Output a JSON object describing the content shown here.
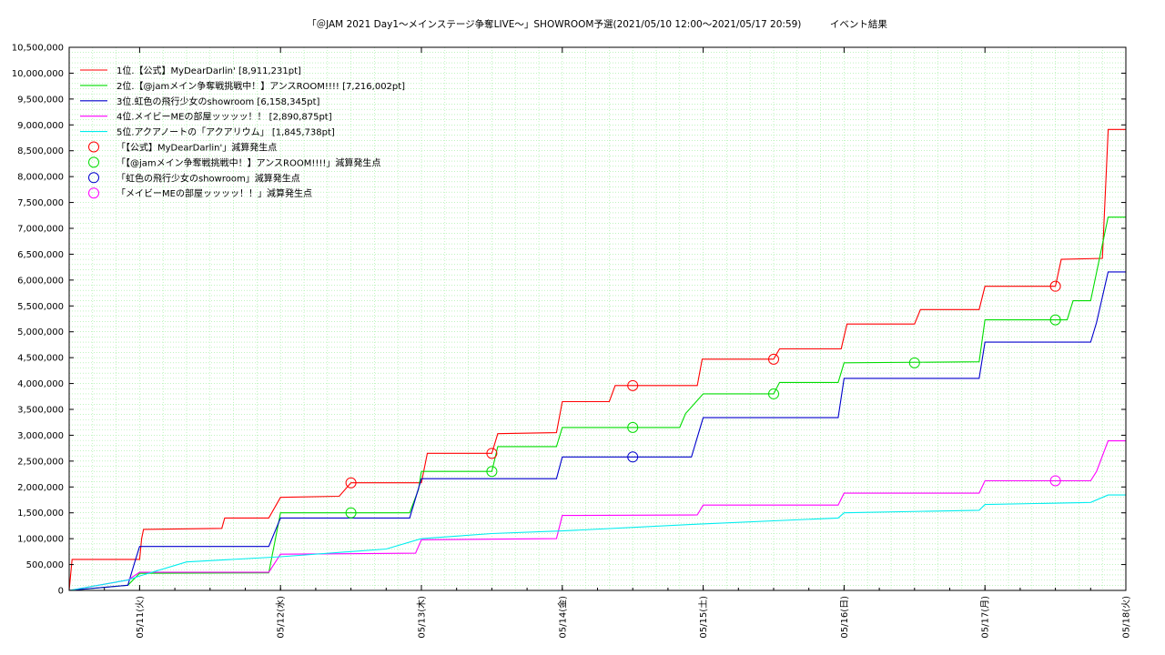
{
  "chart_data": {
    "type": "line",
    "title": "「＠JAM 2021 Day1～メインステージ争奪LIVE～」SHOWROOM予選(2021/05/10 12:00～2021/05/17 20:59)　　　イベント結果",
    "x_ticks": [
      "05/11(火)",
      "05/12(水)",
      "05/13(木)",
      "05/14(金)",
      "05/15(土)",
      "05/16(日)",
      "05/17(月)",
      "05/18(火)"
    ],
    "y_ticks": [
      "0",
      "500,000",
      "1,000,000",
      "1,500,000",
      "2,000,000",
      "2,500,000",
      "3,000,000",
      "3,500,000",
      "4,000,000",
      "4,500,000",
      "5,000,000",
      "5,500,000",
      "6,000,000",
      "6,500,000",
      "7,000,000",
      "7,500,000",
      "8,000,000",
      "8,500,000",
      "9,000,000",
      "9,500,000",
      "10,000,000",
      "10,500,000"
    ],
    "xlim": [
      "2021-05-10 12:00",
      "2021-05-18 00:00"
    ],
    "ylim": [
      0,
      10500000
    ],
    "grid": true,
    "legend_position": "top-left",
    "series": [
      {
        "name": "1位.【公式】MyDearDarlin' [8,911,231pt]",
        "color": "#ff0000",
        "points": [
          [
            "2021-05-10 12:00",
            0
          ],
          [
            "2021-05-10 12:30",
            600000
          ],
          [
            "2021-05-11 00:00",
            600000
          ],
          [
            "2021-05-11 00:20",
            1000000
          ],
          [
            "2021-05-11 00:40",
            1180000
          ],
          [
            "2021-05-11 14:00",
            1200000
          ],
          [
            "2021-05-11 14:30",
            1400000
          ],
          [
            "2021-05-11 22:00",
            1400000
          ],
          [
            "2021-05-12 00:00",
            1800000
          ],
          [
            "2021-05-12 10:00",
            1820000
          ],
          [
            "2021-05-12 12:00",
            2080000
          ],
          [
            "2021-05-13 00:00",
            2080000
          ],
          [
            "2021-05-13 01:00",
            2650000
          ],
          [
            "2021-05-13 12:00",
            2650000
          ],
          [
            "2021-05-13 13:00",
            3030000
          ],
          [
            "2021-05-13 23:00",
            3050000
          ],
          [
            "2021-05-14 00:00",
            3650000
          ],
          [
            "2021-05-14 08:00",
            3650000
          ],
          [
            "2021-05-14 09:00",
            3960000
          ],
          [
            "2021-05-14 23:00",
            3960000
          ],
          [
            "2021-05-14 23:50",
            4470000
          ],
          [
            "2021-05-15 12:00",
            4470000
          ],
          [
            "2021-05-15 13:00",
            4670000
          ],
          [
            "2021-05-15 23:30",
            4670000
          ],
          [
            "2021-05-16 00:30",
            5150000
          ],
          [
            "2021-05-16 12:00",
            5150000
          ],
          [
            "2021-05-16 13:00",
            5430000
          ],
          [
            "2021-05-16 23:00",
            5430000
          ],
          [
            "2021-05-17 00:00",
            5880000
          ],
          [
            "2021-05-17 12:00",
            5880000
          ],
          [
            "2021-05-17 13:00",
            6400000
          ],
          [
            "2021-05-17 20:00",
            6420000
          ],
          [
            "2021-05-17 21:00",
            8911231
          ],
          [
            "2021-05-18 00:00",
            8911231
          ]
        ]
      },
      {
        "name": "2位.【@jamメイン争奪戦挑戦中！】アンスROOM!!!! [7,216,002pt]",
        "color": "#00dd00",
        "points": [
          [
            "2021-05-10 12:00",
            0
          ],
          [
            "2021-05-10 22:00",
            100000
          ],
          [
            "2021-05-11 00:00",
            330000
          ],
          [
            "2021-05-11 22:00",
            340000
          ],
          [
            "2021-05-12 00:00",
            1500000
          ],
          [
            "2021-05-12 22:00",
            1500000
          ],
          [
            "2021-05-12 23:30",
            1950000
          ],
          [
            "2021-05-13 00:00",
            2300000
          ],
          [
            "2021-05-13 12:00",
            2300000
          ],
          [
            "2021-05-13 13:00",
            2780000
          ],
          [
            "2021-05-13 23:00",
            2780000
          ],
          [
            "2021-05-14 00:00",
            3150000
          ],
          [
            "2021-05-14 20:00",
            3150000
          ],
          [
            "2021-05-14 21:00",
            3420000
          ],
          [
            "2021-05-15 00:00",
            3800000
          ],
          [
            "2021-05-15 12:00",
            3800000
          ],
          [
            "2021-05-15 13:00",
            4020000
          ],
          [
            "2021-05-15 23:00",
            4020000
          ],
          [
            "2021-05-16 00:00",
            4400000
          ],
          [
            "2021-05-16 23:00",
            4420000
          ],
          [
            "2021-05-17 00:00",
            5230000
          ],
          [
            "2021-05-17 14:00",
            5230000
          ],
          [
            "2021-05-17 15:00",
            5600000
          ],
          [
            "2021-05-17 18:00",
            5600000
          ],
          [
            "2021-05-17 20:59",
            7216002
          ],
          [
            "2021-05-18 00:00",
            7216002
          ]
        ]
      },
      {
        "name": "3位.虹色の飛行少女のshowroom [6,158,345pt]",
        "color": "#0000cc",
        "points": [
          [
            "2021-05-10 12:00",
            0
          ],
          [
            "2021-05-10 22:00",
            100000
          ],
          [
            "2021-05-10 23:00",
            480000
          ],
          [
            "2021-05-11 00:00",
            850000
          ],
          [
            "2021-05-11 22:00",
            850000
          ],
          [
            "2021-05-12 00:00",
            1400000
          ],
          [
            "2021-05-12 22:00",
            1400000
          ],
          [
            "2021-05-13 00:00",
            2160000
          ],
          [
            "2021-05-13 23:00",
            2160000
          ],
          [
            "2021-05-14 00:00",
            2580000
          ],
          [
            "2021-05-14 22:00",
            2580000
          ],
          [
            "2021-05-15 00:00",
            3340000
          ],
          [
            "2021-05-15 23:00",
            3340000
          ],
          [
            "2021-05-16 00:00",
            4100000
          ],
          [
            "2021-05-16 23:00",
            4100000
          ],
          [
            "2021-05-17 00:00",
            4800000
          ],
          [
            "2021-05-17 18:00",
            4800000
          ],
          [
            "2021-05-17 19:00",
            5180000
          ],
          [
            "2021-05-17 20:59",
            6158345
          ],
          [
            "2021-05-18 00:00",
            6158345
          ]
        ]
      },
      {
        "name": "4位.メイビーMEの部屋ッッッッ！！ [2,890,875pt]",
        "color": "#ff00ff",
        "points": [
          [
            "2021-05-10 12:00",
            0
          ],
          [
            "2021-05-10 22:00",
            200000
          ],
          [
            "2021-05-11 00:00",
            350000
          ],
          [
            "2021-05-11 22:00",
            350000
          ],
          [
            "2021-05-12 00:00",
            700000
          ],
          [
            "2021-05-12 23:00",
            720000
          ],
          [
            "2021-05-13 00:00",
            980000
          ],
          [
            "2021-05-13 23:00",
            1000000
          ],
          [
            "2021-05-14 00:00",
            1450000
          ],
          [
            "2021-05-14 23:00",
            1460000
          ],
          [
            "2021-05-15 00:00",
            1650000
          ],
          [
            "2021-05-15 23:00",
            1650000
          ],
          [
            "2021-05-16 00:00",
            1880000
          ],
          [
            "2021-05-16 23:00",
            1880000
          ],
          [
            "2021-05-17 00:00",
            2120000
          ],
          [
            "2021-05-17 18:00",
            2120000
          ],
          [
            "2021-05-17 19:00",
            2300000
          ],
          [
            "2021-05-17 20:59",
            2890875
          ],
          [
            "2021-05-18 00:00",
            2890875
          ]
        ]
      },
      {
        "name": "5位.アクアノートの「アクアリウム」 [1,845,738pt]",
        "color": "#00eeee",
        "points": [
          [
            "2021-05-10 12:00",
            0
          ],
          [
            "2021-05-10 22:00",
            200000
          ],
          [
            "2021-05-11 00:00",
            280000
          ],
          [
            "2021-05-11 08:00",
            550000
          ],
          [
            "2021-05-12 00:00",
            650000
          ],
          [
            "2021-05-12 18:00",
            800000
          ],
          [
            "2021-05-13 00:00",
            1000000
          ],
          [
            "2021-05-13 12:00",
            1100000
          ],
          [
            "2021-05-14 00:00",
            1150000
          ],
          [
            "2021-05-14 23:00",
            1280000
          ],
          [
            "2021-05-15 23:00",
            1400000
          ],
          [
            "2021-05-16 00:00",
            1500000
          ],
          [
            "2021-05-16 23:00",
            1550000
          ],
          [
            "2021-05-17 00:00",
            1660000
          ],
          [
            "2021-05-17 18:00",
            1700000
          ],
          [
            "2021-05-17 20:59",
            1845738
          ],
          [
            "2021-05-18 00:00",
            1845738
          ]
        ]
      }
    ],
    "reduction_points": [
      {
        "name": "「【公式】MyDearDarlin'」減算発生点",
        "color": "#ff0000",
        "points": [
          [
            "2021-05-12 12:00",
            2080000
          ],
          [
            "2021-05-13 12:00",
            2650000
          ],
          [
            "2021-05-14 12:00",
            3960000
          ],
          [
            "2021-05-15 12:00",
            4470000
          ],
          [
            "2021-05-17 12:00",
            5880000
          ]
        ]
      },
      {
        "name": "「【@jamメイン争奪戦挑戦中！】アンスROOM!!!!」減算発生点",
        "color": "#00dd00",
        "points": [
          [
            "2021-05-12 12:00",
            1500000
          ],
          [
            "2021-05-13 12:00",
            2300000
          ],
          [
            "2021-05-14 12:00",
            3150000
          ],
          [
            "2021-05-15 12:00",
            3800000
          ],
          [
            "2021-05-16 12:00",
            4400000
          ],
          [
            "2021-05-17 12:00",
            5230000
          ]
        ]
      },
      {
        "name": "「虹色の飛行少女のshowroom」減算発生点",
        "color": "#0000cc",
        "points": [
          [
            "2021-05-14 12:00",
            2580000
          ]
        ]
      },
      {
        "name": "「メイビーMEの部屋ッッッッ！！」減算発生点",
        "color": "#ff00ff",
        "points": [
          [
            "2021-05-17 12:00",
            2120000
          ]
        ]
      }
    ]
  }
}
